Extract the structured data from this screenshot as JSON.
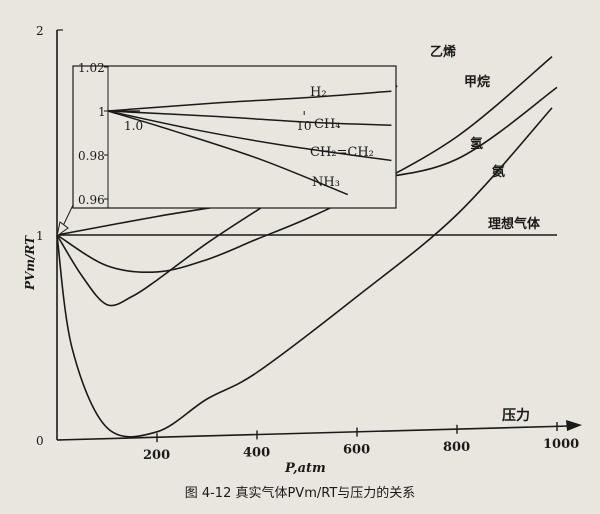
{
  "chart_data": [
    {
      "type": "line",
      "title": "",
      "xlabel": "P,atm",
      "ylabel": "PVm/RT",
      "xlim": [
        0,
        1000
      ],
      "ylim": [
        0,
        2
      ],
      "x_ticks": [
        200,
        400,
        600,
        800,
        1000
      ],
      "y_ticks": [
        0,
        1,
        2
      ],
      "arrow_label": "压力",
      "grid": false,
      "series": [
        {
          "name": "理想气体",
          "points": [
            [
              0,
              1
            ],
            [
              1000,
              1
            ]
          ]
        },
        {
          "name": "乙烯",
          "points": [
            [
              0,
              1
            ],
            [
              50,
              0.8
            ],
            [
              100,
              0.66
            ],
            [
              150,
              0.7
            ],
            [
              200,
              0.78
            ],
            [
              300,
              0.96
            ],
            [
              400,
              1.12
            ],
            [
              500,
              1.27
            ],
            [
              600,
              1.42
            ],
            [
              680,
              1.73
            ]
          ]
        },
        {
          "name": "甲烷",
          "points": [
            [
              0,
              1
            ],
            [
              100,
              0.85
            ],
            [
              200,
              0.82
            ],
            [
              300,
              0.88
            ],
            [
              400,
              0.98
            ],
            [
              500,
              1.08
            ],
            [
              600,
              1.2
            ],
            [
              800,
              1.48
            ],
            [
              990,
              1.87
            ]
          ]
        },
        {
          "name": "氢",
          "points": [
            [
              0,
              1
            ],
            [
              200,
              1.09
            ],
            [
              400,
              1.17
            ],
            [
              600,
              1.26
            ],
            [
              800,
              1.37
            ],
            [
              1000,
              1.72
            ]
          ]
        },
        {
          "name": "氨",
          "points": [
            [
              0,
              1
            ],
            [
              30,
              0.45
            ],
            [
              100,
              0.06
            ],
            [
              200,
              0.04
            ],
            [
              300,
              0.2
            ],
            [
              400,
              0.33
            ],
            [
              600,
              0.7
            ],
            [
              800,
              1.1
            ],
            [
              990,
              1.62
            ]
          ]
        }
      ]
    },
    {
      "type": "line",
      "title": "",
      "xlabel": "",
      "ylabel": "",
      "xlim": [
        0,
        14
      ],
      "ylim": [
        0.95,
        1.03
      ],
      "x_tick_labels": [
        "1.0",
        "10"
      ],
      "y_tick_labels": [
        "1.02",
        "1",
        "0.98",
        "0.96"
      ],
      "series": [
        {
          "name": "H₂",
          "points": [
            [
              1,
              1
            ],
            [
              6,
              1.0037
            ],
            [
              10,
              1.006
            ],
            [
              14,
              1.009
            ]
          ]
        },
        {
          "name": "CH₄",
          "points": [
            [
              1,
              1
            ],
            [
              6,
              0.9975
            ],
            [
              10,
              0.995
            ],
            [
              14,
              0.9935
            ]
          ]
        },
        {
          "name": "CH₂=CH₂",
          "points": [
            [
              1,
              1
            ],
            [
              5,
              0.9915
            ],
            [
              9,
              0.9845
            ],
            [
              14,
              0.9775
            ]
          ]
        },
        {
          "name": "NH₃",
          "points": [
            [
              1,
              1
            ],
            [
              4,
              0.991
            ],
            [
              8,
              0.978
            ],
            [
              12,
              0.962
            ]
          ]
        }
      ]
    }
  ],
  "caption": "图 4-12  真实气体PVm/RT与压力的关系"
}
